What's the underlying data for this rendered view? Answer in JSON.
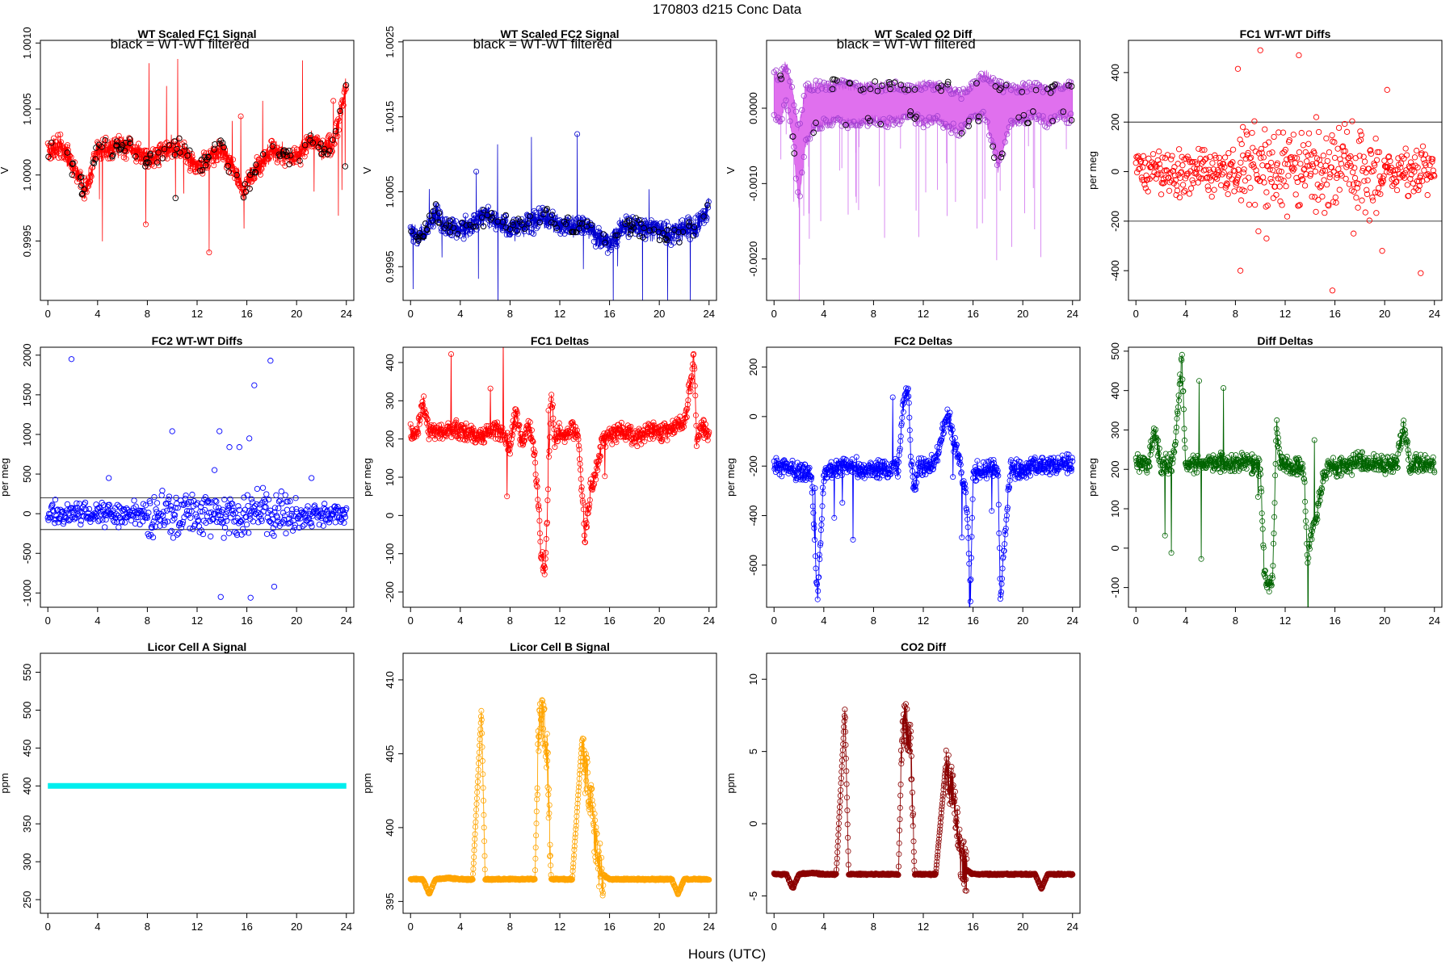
{
  "figure": {
    "suptitle": "170803   d215   Conc Data",
    "xlabel": "Hours (UTC)"
  },
  "chart_data": [
    {
      "type": "line",
      "title": "WT Scaled FC1 Signal",
      "annotation": "black = WT-WT filtered",
      "ylabel": "V",
      "xlim": [
        -0.6,
        24.6
      ],
      "ylim": [
        0.99905,
        1.00102
      ],
      "xticks": [
        "0",
        "4",
        "8",
        "12",
        "16",
        "20",
        "24"
      ],
      "yticks": [
        "0.9995",
        "1.0000",
        "1.0005",
        "1.0010"
      ],
      "ytick_values": [
        0.9995,
        1.0,
        1.0005,
        1.001
      ],
      "color": "#ff0000",
      "mark_color": "#000000",
      "series": [
        {
          "x": [
            0,
            1,
            2,
            3,
            4,
            5,
            6,
            7,
            8,
            9,
            10,
            11,
            12,
            13,
            14,
            15,
            15.8,
            16,
            17,
            18,
            19,
            20,
            21,
            22,
            23,
            23.5,
            24
          ],
          "y": [
            1.00018,
            1.00022,
            1.00008,
            0.99988,
            1.00018,
            1.0002,
            1.00022,
            1.00018,
            1.00012,
            1.00016,
            1.00022,
            1.00016,
            1.00006,
            1.00014,
            1.0002,
            1.00004,
            0.99985,
            0.99995,
            1.00008,
            1.00018,
            1.00016,
            1.00012,
            1.00026,
            1.0002,
            1.00022,
            1.00048,
            1.00068
          ]
        }
      ]
    },
    {
      "type": "line",
      "title": "WT Scaled FC2 Signal",
      "annotation": "black = WT-WT filtered",
      "ylabel": "V",
      "xlim": [
        -0.6,
        24.6
      ],
      "ylim": [
        0.99905,
        1.00252
      ],
      "xticks": [
        "0",
        "4",
        "8",
        "12",
        "16",
        "20",
        "24"
      ],
      "yticks": [
        "0.9995",
        "1.0005",
        "1.0015",
        "1.0025"
      ],
      "ytick_values": [
        0.9995,
        1.0005,
        1.0015,
        1.0025
      ],
      "color": "#0000cd",
      "mark_color": "#000000",
      "series": [
        {
          "x": [
            0,
            1,
            2,
            3,
            4,
            5,
            6,
            7,
            8,
            9,
            10,
            11,
            12,
            13,
            14,
            15,
            16,
            17,
            18,
            19,
            20,
            21,
            22,
            23,
            24
          ],
          "y": [
            0.99995,
            0.9999,
            1.0002,
            1.0,
            1.00002,
            1.00005,
            1.0002,
            1.0001,
            1.0,
            1.00002,
            1.00012,
            1.00015,
            1.00005,
            1.00002,
            1.00008,
            0.9999,
            0.9998,
            1.00004,
            1.00002,
            1.0,
            0.99998,
            0.99994,
            1.00002,
            1.0,
            1.00035
          ]
        }
      ]
    },
    {
      "type": "line",
      "title": "WT Scaled O2 Diff",
      "annotation": "black = WT-WT filtered",
      "ylabel": "V",
      "xlim": [
        -0.6,
        24.6
      ],
      "ylim": [
        -0.00255,
        0.0009
      ],
      "xticks": [
        "0",
        "4",
        "8",
        "12",
        "16",
        "20",
        "24"
      ],
      "yticks": [
        "-0.0020",
        "-0.0010",
        "0.0000"
      ],
      "ytick_values": [
        -0.002,
        -0.001,
        0.0
      ],
      "color": "#d060e8",
      "mark_color": "#000000",
      "series": [
        {
          "x": [
            0,
            0.5,
            1,
            1.5,
            2,
            2.5,
            3,
            4,
            5,
            6,
            7,
            8,
            9,
            10,
            11,
            12,
            13,
            14,
            15,
            16,
            17,
            18,
            19,
            20,
            21,
            22,
            23,
            24
          ],
          "y": [
            0.00045,
            0.0004,
            0.0006,
            0.0002,
            -0.0003,
            0.00025,
            0.0003,
            0.0003,
            0.00032,
            0.0003,
            0.00028,
            0.0003,
            0.00028,
            0.0003,
            0.00025,
            0.00032,
            0.0003,
            0.00028,
            0.00018,
            0.0003,
            0.00045,
            0.0003,
            0.00025,
            0.00028,
            0.0003,
            0.00025,
            0.00028,
            0.0003
          ]
        },
        {
          "x": [
            0,
            0.5,
            1,
            1.5,
            2,
            2.5,
            3,
            4,
            5,
            6,
            7,
            8,
            9,
            10,
            11,
            12,
            13,
            14,
            15,
            16,
            17,
            18,
            19,
            20,
            21,
            22,
            23,
            24
          ],
          "y": [
            -0.0001,
            -0.0002,
            0.0001,
            -0.0004,
            -0.0013,
            -0.0005,
            -0.0003,
            -0.0002,
            -0.00015,
            -0.0002,
            -0.0002,
            -0.00015,
            -0.0002,
            -0.00015,
            -0.0001,
            -0.0002,
            -0.00015,
            -0.00025,
            -0.0003,
            -0.00012,
            -0.0001,
            -0.0008,
            -0.0002,
            -0.00015,
            -0.0001,
            -0.0002,
            -0.0001,
            -0.00015
          ]
        }
      ]
    },
    {
      "type": "scatter",
      "title": "FC1 WT-WT Diffs",
      "ylabel": "per meg",
      "xlim": [
        -0.6,
        24.6
      ],
      "ylim": [
        -520,
        530
      ],
      "xticks": [
        "0",
        "4",
        "8",
        "12",
        "16",
        "20",
        "24"
      ],
      "yticks": [
        "-400",
        "-200",
        "0",
        "200",
        "400"
      ],
      "ytick_values": [
        -400,
        -200,
        0,
        200,
        400
      ],
      "hlines": [
        200,
        -200
      ],
      "color": "#ff0000",
      "series": [
        {
          "x": [
            8.2,
            8.6,
            10,
            13.1,
            15.8,
            8.4,
            10.5,
            20.2,
            22.9,
            19.8,
            14.5,
            17.5
          ],
          "y": [
            415,
            180,
            490,
            470,
            -480,
            -400,
            -270,
            330,
            -410,
            -320,
            220,
            -250
          ]
        }
      ]
    },
    {
      "type": "scatter",
      "title": "FC2 WT-WT Diffs",
      "ylabel": "per meg",
      "xlim": [
        -0.6,
        24.6
      ],
      "ylim": [
        -1180,
        2100
      ],
      "xticks": [
        "0",
        "4",
        "8",
        "12",
        "16",
        "20",
        "24"
      ],
      "yticks": [
        "-1000",
        "-500",
        "0",
        "500",
        "1000",
        "1500",
        "2000"
      ],
      "ytick_values": [
        -1000,
        -500,
        0,
        500,
        1000,
        1500,
        2000
      ],
      "hlines": [
        200,
        -200
      ],
      "color": "#0000ff",
      "series": [
        {
          "x": [
            1.9,
            17.9,
            16.6,
            10,
            13.8,
            15.4,
            16.2,
            14.6,
            13.9,
            16.3,
            18.2,
            13.4,
            4.9,
            21.2
          ],
          "y": [
            1950,
            1930,
            1620,
            1040,
            1040,
            840,
            950,
            840,
            -1050,
            -1060,
            -920,
            550,
            450,
            450
          ]
        }
      ]
    },
    {
      "type": "line",
      "title": "FC1 Deltas",
      "ylabel": "per meg",
      "xlim": [
        -0.6,
        24.6
      ],
      "ylim": [
        -240,
        440
      ],
      "xticks": [
        "0",
        "4",
        "8",
        "12",
        "16",
        "20",
        "24"
      ],
      "yticks": [
        "-200",
        "-100",
        "0",
        "100",
        "200",
        "300",
        "400"
      ],
      "ytick_values": [
        -200,
        -100,
        0,
        100,
        200,
        300,
        400
      ],
      "color": "#ff0000",
      "series": [
        {
          "x": [
            0,
            0.5,
            1,
            1.5,
            2,
            3,
            4,
            5,
            6,
            7,
            8,
            8.5,
            9,
            9.5,
            10,
            10.3,
            10.5,
            10.8,
            11,
            11.3,
            11.6,
            12,
            12.5,
            13,
            13.5,
            13.8,
            14,
            14.5,
            15,
            15.5,
            16,
            17,
            18,
            19,
            20,
            21,
            22,
            22.8,
            23,
            23.5,
            24
          ],
          "y": [
            215,
            210,
            300,
            215,
            220,
            220,
            225,
            215,
            210,
            230,
            190,
            270,
            180,
            240,
            150,
            20,
            -100,
            -150,
            10,
            320,
            200,
            220,
            210,
            230,
            210,
            50,
            -60,
            70,
            120,
            200,
            210,
            220,
            200,
            220,
            210,
            230,
            240,
            410,
            200,
            230,
            220
          ]
        }
      ]
    },
    {
      "type": "line",
      "title": "FC2 Deltas",
      "ylabel": "per meg",
      "xlim": [
        -0.6,
        24.6
      ],
      "ylim": [
        -770,
        280
      ],
      "xticks": [
        "0",
        "4",
        "8",
        "12",
        "16",
        "20",
        "24"
      ],
      "yticks": [
        "-600",
        "-400",
        "-200",
        "0",
        "200"
      ],
      "ytick_values": [
        -600,
        -400,
        -200,
        0,
        200
      ],
      "color": "#0000ff",
      "series": [
        {
          "x": [
            0,
            1,
            2,
            3,
            3.5,
            4,
            5,
            6,
            7,
            8,
            9,
            10,
            10.4,
            10.8,
            11,
            11.3,
            11.6,
            12,
            13,
            14,
            14.3,
            15,
            15.5,
            15.8,
            16,
            17,
            18,
            18.2,
            19,
            20,
            21,
            22,
            23,
            24
          ],
          "y": [
            -210,
            -200,
            -220,
            -230,
            -740,
            -220,
            -210,
            -190,
            -220,
            -210,
            -220,
            -200,
            60,
            120,
            -180,
            -310,
            -200,
            -210,
            -180,
            20,
            -80,
            -200,
            -350,
            -730,
            -220,
            -220,
            -200,
            -740,
            -210,
            -220,
            -190,
            -210,
            -200,
            -190
          ]
        }
      ]
    },
    {
      "type": "line",
      "title": "Diff Deltas",
      "ylabel": "per meg",
      "xlim": [
        -0.6,
        24.6
      ],
      "ylim": [
        -150,
        510
      ],
      "xticks": [
        "0",
        "4",
        "8",
        "12",
        "16",
        "20",
        "24"
      ],
      "yticks": [
        "-100",
        "0",
        "100",
        "200",
        "300",
        "400",
        "500"
      ],
      "ytick_values": [
        -100,
        0,
        100,
        200,
        300,
        400,
        500
      ],
      "color": "#006400",
      "series": [
        {
          "x": [
            0,
            0.5,
            1,
            1.5,
            2,
            3,
            3.7,
            4,
            5,
            6,
            7,
            8,
            9,
            10,
            10.3,
            10.6,
            11,
            11.3,
            11.6,
            12,
            13,
            13.5,
            13.8,
            14,
            14.5,
            15,
            15.5,
            16,
            17,
            18,
            19,
            20,
            21,
            21.5,
            22,
            23,
            24
          ],
          "y": [
            215,
            220,
            210,
            300,
            210,
            215,
            480,
            210,
            215,
            220,
            215,
            220,
            215,
            210,
            -50,
            -100,
            -80,
            320,
            210,
            215,
            210,
            200,
            -40,
            20,
            80,
            170,
            210,
            205,
            210,
            220,
            215,
            210,
            215,
            320,
            210,
            215,
            210
          ]
        }
      ]
    },
    {
      "type": "line",
      "title": "Licor Cell A Signal",
      "ylabel": "ppm",
      "xlim": [
        -0.6,
        24.6
      ],
      "ylim": [
        232,
        575
      ],
      "xticks": [
        "0",
        "4",
        "8",
        "12",
        "16",
        "20",
        "24"
      ],
      "yticks": [
        "250",
        "300",
        "350",
        "400",
        "450",
        "500",
        "550"
      ],
      "ytick_values": [
        250,
        300,
        350,
        400,
        450,
        500,
        550
      ],
      "color": "#00eeee",
      "series": [
        {
          "x": [
            0,
            24
          ],
          "y": [
            400,
            400
          ]
        }
      ]
    },
    {
      "type": "line",
      "title": "Licor Cell B Signal",
      "ylabel": "ppm",
      "xlim": [
        -0.6,
        24.6
      ],
      "ylim": [
        394.2,
        411.8
      ],
      "xticks": [
        "0",
        "4",
        "8",
        "12",
        "16",
        "20",
        "24"
      ],
      "yticks": [
        "395",
        "400",
        "405",
        "410"
      ],
      "ytick_values": [
        395,
        400,
        405,
        410
      ],
      "color": "#ffa500",
      "series": [
        {
          "x": [
            0,
            1,
            1.5,
            2,
            3,
            4,
            5,
            5.7,
            6,
            7,
            8,
            9,
            10,
            10.3,
            10.6,
            11,
            11.3,
            11.6,
            12,
            13,
            13.8,
            14,
            14.5,
            15,
            15.5,
            16,
            17,
            18,
            19,
            20,
            21,
            21.5,
            22,
            23,
            24
          ],
          "y": [
            396.5,
            396.5,
            395.5,
            396.5,
            396.6,
            396.5,
            396.5,
            408,
            396.5,
            396.5,
            396.5,
            396.5,
            396.5,
            406.5,
            407.5,
            405,
            396.5,
            396.5,
            396.5,
            396.5,
            406,
            404,
            402,
            398,
            396.8,
            396.5,
            396.5,
            396.5,
            396.5,
            396.5,
            396.5,
            395.5,
            396.5,
            396.5,
            396.5
          ]
        }
      ]
    },
    {
      "type": "line",
      "title": "CO2 Diff",
      "ylabel": "ppm",
      "xlim": [
        -0.6,
        24.6
      ],
      "ylim": [
        -6.2,
        11.8
      ],
      "xticks": [
        "0",
        "4",
        "8",
        "12",
        "16",
        "20",
        "24"
      ],
      "yticks": [
        "-5",
        "0",
        "5",
        "10"
      ],
      "ytick_values": [
        -5,
        0,
        5,
        10
      ],
      "color": "#8b0000",
      "series": [
        {
          "x": [
            0,
            1,
            1.5,
            2,
            3,
            4,
            5,
            5.7,
            6,
            7,
            8,
            9,
            10,
            10.3,
            10.6,
            11,
            11.3,
            11.6,
            12,
            13,
            13.8,
            14,
            14.5,
            15,
            15.5,
            16,
            17,
            18,
            19,
            20,
            21,
            21.5,
            22,
            23,
            24
          ],
          "y": [
            -3.5,
            -3.5,
            -4.5,
            -3.5,
            -3.4,
            -3.5,
            -3.5,
            8,
            -3.5,
            -3.5,
            -3.5,
            -3.5,
            -3.5,
            6.5,
            7,
            5,
            -3.5,
            -3.5,
            -3.5,
            -3.5,
            4,
            3.5,
            1.5,
            -2.5,
            -3.2,
            -3.5,
            -3.5,
            -3.5,
            -3.5,
            -3.5,
            -3.5,
            -4.5,
            -3.5,
            -3.5,
            -3.5
          ]
        }
      ]
    }
  ]
}
